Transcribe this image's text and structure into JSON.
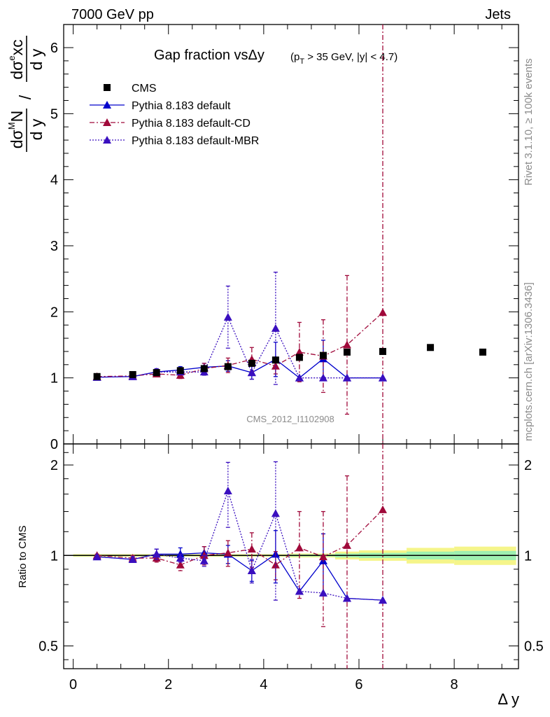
{
  "header": {
    "left": "7000 GeV pp",
    "right": "Jets"
  },
  "title": {
    "main": "Gap fraction vsΔy",
    "cuts": "(p_T > 35 GeV, |y| < 4.7)"
  },
  "side_labels": {
    "rivet": "Rivet 3.1.10, ≥ 100k events",
    "mcplots": "mcplots.cern.ch [arXiv:1306.3436]"
  },
  "analysis_id": "CMS_2012_I1102908",
  "colors": {
    "cms": "#000000",
    "default": "#0000cc",
    "cd": "#a0093a",
    "mbr": "#3a0fbf",
    "band_outer": "#f5f58a",
    "band_inner": "#9ef0b0"
  },
  "chart_data": [
    {
      "type": "scatter",
      "panel": "main",
      "ylabel": "dσ^MN/dy / dσ^exc/dy",
      "xlim": [
        -0.2,
        9.35
      ],
      "ylim": [
        0,
        6.35
      ],
      "yticks": [
        "0",
        "1",
        "2",
        "3",
        "4",
        "5",
        "6"
      ],
      "legend_position": "top-left",
      "series": [
        {
          "name": "CMS",
          "style": "square",
          "x": [
            0.5,
            1.25,
            1.75,
            2.25,
            2.75,
            3.25,
            3.75,
            4.25,
            4.75,
            5.25,
            5.75,
            6.5,
            7.5,
            8.6
          ],
          "y": [
            1.02,
            1.05,
            1.08,
            1.11,
            1.14,
            1.17,
            1.22,
            1.27,
            1.31,
            1.34,
            1.39,
            1.4,
            1.46,
            1.39
          ]
        },
        {
          "name": "Pythia 8.183 default",
          "style": "solid",
          "x": [
            0.5,
            1.25,
            1.75,
            2.25,
            2.75,
            3.25,
            3.75,
            4.25,
            4.75,
            5.25,
            5.75,
            6.5
          ],
          "y": [
            1.01,
            1.02,
            1.09,
            1.12,
            1.16,
            1.18,
            1.08,
            1.28,
            1.0,
            1.29,
            1.0,
            1.0
          ],
          "err": [
            0.01,
            0.02,
            0.04,
            0.05,
            0.06,
            0.08,
            0.1,
            0.26,
            0.0,
            0.28,
            0.0,
            0.0
          ]
        },
        {
          "name": "Pythia 8.183 default-CD",
          "style": "dashdot",
          "x": [
            0.5,
            1.25,
            1.75,
            2.25,
            2.75,
            3.25,
            3.75,
            4.25,
            4.75,
            5.25,
            5.75,
            6.5
          ],
          "y": [
            1.02,
            1.03,
            1.06,
            1.04,
            1.14,
            1.19,
            1.28,
            1.18,
            1.39,
            1.33,
            1.5,
            1.99
          ],
          "err": [
            0.01,
            0.02,
            0.03,
            0.05,
            0.08,
            0.11,
            0.18,
            0.12,
            0.45,
            0.55,
            1.05,
            4.5
          ]
        },
        {
          "name": "Pythia 8.183 default-MBR",
          "style": "dotted",
          "x": [
            0.5,
            1.25,
            1.75,
            2.25,
            2.75,
            3.25,
            3.75,
            4.25,
            4.75,
            5.25,
            5.75,
            6.5
          ],
          "y": [
            1.01,
            1.02,
            1.09,
            1.09,
            1.09,
            1.92,
            1.08,
            1.75,
            1.0,
            1.0,
            1.0,
            1.0
          ],
          "err": [
            0.01,
            0.02,
            0.05,
            0.04,
            0.05,
            0.47,
            0.1,
            0.85,
            0.0,
            0.0,
            0.0,
            0.0
          ]
        }
      ]
    },
    {
      "type": "scatter",
      "panel": "ratio",
      "ylabel": "Ratio to CMS",
      "xlabel": "Δ y",
      "xlim": [
        -0.2,
        9.35
      ],
      "xticks": [
        "0",
        "2",
        "4",
        "6",
        "8"
      ],
      "yscale": "log",
      "ylim": [
        0.42,
        2.35
      ],
      "yticks": [
        "0.5",
        "1",
        "2"
      ],
      "series": [
        {
          "name": "Pythia 8.183 default",
          "style": "solid",
          "x": [
            0.5,
            1.25,
            1.75,
            2.25,
            2.75,
            3.25,
            3.75,
            4.25,
            4.75,
            5.25,
            5.75,
            6.5
          ],
          "y": [
            0.99,
            0.97,
            1.01,
            1.01,
            1.02,
            1.01,
            0.89,
            1.01,
            0.76,
            0.96,
            0.72,
            0.71
          ],
          "err": [
            0.01,
            0.02,
            0.04,
            0.05,
            0.05,
            0.07,
            0.07,
            0.2,
            0.0,
            0.22,
            0.0,
            0.0
          ]
        },
        {
          "name": "Pythia 8.183 default-CD",
          "style": "dashdot",
          "x": [
            0.5,
            1.25,
            1.75,
            2.25,
            2.75,
            3.25,
            3.75,
            4.25,
            4.75,
            5.25,
            5.75,
            6.5
          ],
          "y": [
            1.0,
            0.98,
            0.98,
            0.93,
            1.0,
            1.02,
            1.05,
            0.93,
            1.06,
            0.99,
            1.08,
            1.42
          ],
          "err": [
            0.01,
            0.02,
            0.03,
            0.04,
            0.07,
            0.1,
            0.14,
            0.1,
            0.34,
            0.41,
            0.76,
            3.2
          ]
        },
        {
          "name": "Pythia 8.183 default-MBR",
          "style": "dotted",
          "x": [
            0.5,
            1.25,
            1.75,
            2.25,
            2.75,
            3.25,
            3.75,
            4.25,
            4.75,
            5.25,
            5.75,
            6.5
          ],
          "y": [
            0.99,
            0.97,
            1.01,
            0.98,
            0.96,
            1.64,
            0.89,
            1.38,
            0.76,
            0.75,
            0.72,
            0.71
          ],
          "err": [
            0.01,
            0.02,
            0.04,
            0.03,
            0.04,
            0.4,
            0.08,
            0.67,
            0.0,
            0.0,
            0.0,
            0.0
          ]
        }
      ],
      "reference_band": {
        "x": [
          0.0,
          4.5,
          5.5,
          6.0,
          7.0,
          8.0,
          9.3
        ],
        "outer": [
          0.01,
          0.015,
          0.03,
          0.04,
          0.06,
          0.07,
          0.06
        ],
        "inner": [
          0.005,
          0.008,
          0.015,
          0.02,
          0.03,
          0.035,
          0.03
        ]
      }
    }
  ]
}
